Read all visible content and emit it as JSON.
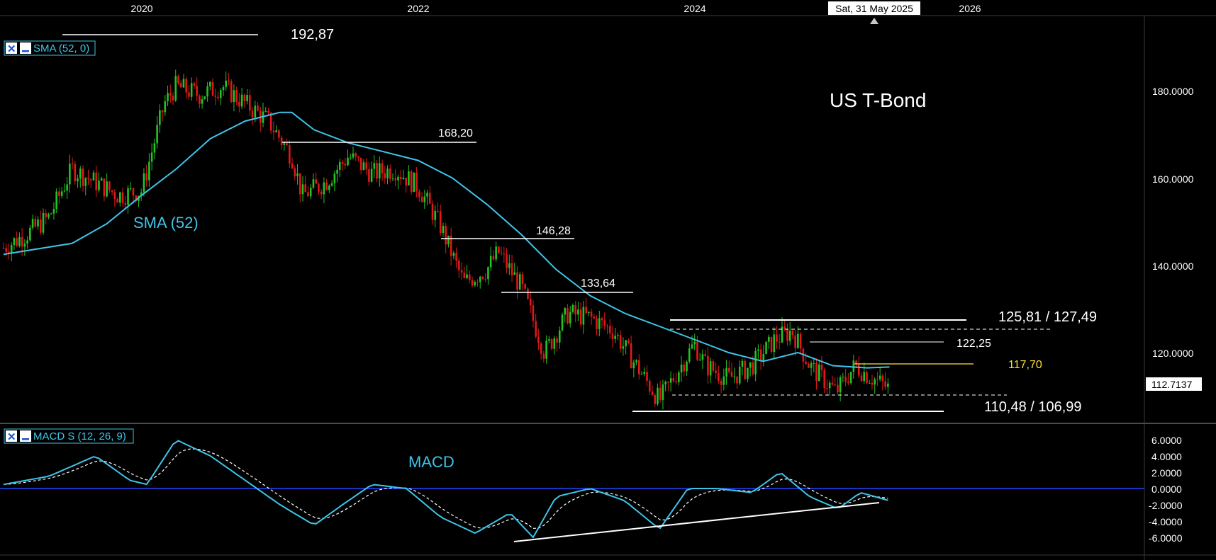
{
  "instrument_title": "US T-Bond",
  "crosshair_date": "Sat, 31 May 2025",
  "last_price_label": "112.7137",
  "price_panel": {
    "indicator_legend": "SMA (52, 0)",
    "sma_label": "SMA (52)",
    "y_ticks": [
      "180.0000",
      "160.0000",
      "140.0000",
      "120.0000"
    ],
    "y_tick_values": [
      180,
      160,
      140,
      120
    ]
  },
  "macd_panel": {
    "indicator_legend": "MACD S (12, 26, 9)",
    "macd_label": "MACD",
    "y_ticks": [
      "6.0000",
      "4.0000",
      "2.0000",
      "0.0000",
      "-2.0000",
      "-4.0000",
      "-6.0000"
    ],
    "y_tick_values": [
      6,
      4,
      2,
      0,
      -2,
      -4,
      -6
    ]
  },
  "x_ticks": [
    "2020",
    "2022",
    "2024",
    "2026"
  ],
  "levels": {
    "high_2020": "192,87",
    "l168": "168,20",
    "l146": "146,28",
    "l133": "133,64",
    "range_top": "125,81 / 127,49",
    "l122": "122,25",
    "l117": "117,70",
    "range_bottom": "110,48 / 106,99"
  },
  "colors": {
    "background": "#000000",
    "up_candle": "#22c422",
    "down_candle": "#e01818",
    "sma": "#3fc4e8",
    "macd": "#3fc4e8",
    "signal": "#ffffff",
    "zero_line": "#2346ff",
    "highlight_level": "#ffe23a",
    "legend_text": "#3fc4e8"
  },
  "chart_data": [
    {
      "type": "candlestick",
      "title": "US T-Bond",
      "ylim": [
        105,
        195
      ],
      "x_range": [
        "2019-01-01",
        "2026-07-01"
      ],
      "x_ticks": [
        "2020",
        "2022",
        "2024",
        "2026"
      ],
      "series": [
        {
          "name": "SMA (52)",
          "type": "line",
          "x": [
            "2019-01-01",
            "2019-07-01",
            "2019-10-01",
            "2020-01-01",
            "2020-04-01",
            "2020-07-01",
            "2020-10-01",
            "2021-01-01",
            "2021-02-01",
            "2021-04-01",
            "2021-07-01",
            "2021-10-01",
            "2022-01-01",
            "2022-04-01",
            "2022-07-01",
            "2022-10-01",
            "2023-01-01",
            "2023-04-01",
            "2023-07-01",
            "2023-10-01",
            "2024-01-01",
            "2024-04-01",
            "2024-07-01",
            "2024-10-01",
            "2025-01-01",
            "2025-04-01",
            "2025-05-31"
          ],
          "values": [
            143.5,
            146,
            150.5,
            157,
            163,
            170,
            174,
            176,
            176,
            172,
            169,
            167,
            165,
            161,
            155,
            148,
            140,
            134,
            130,
            127,
            124,
            121,
            119,
            121,
            118,
            117.5,
            117.7
          ]
        },
        {
          "name": "Close",
          "type": "line",
          "x": [
            "2019-01-01",
            "2019-03-01",
            "2019-05-01",
            "2019-07-01",
            "2019-09-01",
            "2019-11-01",
            "2020-01-01",
            "2020-03-01",
            "2020-04-01",
            "2020-06-01",
            "2020-08-01",
            "2020-10-01",
            "2020-12-01",
            "2021-02-01",
            "2021-03-01",
            "2021-05-01",
            "2021-07-01",
            "2021-09-01",
            "2021-11-01",
            "2022-01-01",
            "2022-03-01",
            "2022-05-01",
            "2022-07-01",
            "2022-08-01",
            "2022-10-01",
            "2022-12-01",
            "2023-02-01",
            "2023-04-01",
            "2023-06-01",
            "2023-08-01",
            "2023-10-01",
            "2024-01-01",
            "2024-02-01",
            "2024-04-01",
            "2024-06-01",
            "2024-08-01",
            "2024-09-15",
            "2024-11-01",
            "2025-01-10",
            "2025-03-01",
            "2025-04-01",
            "2025-05-31"
          ],
          "values": [
            145,
            148,
            152,
            163,
            160,
            157,
            158,
            178,
            182,
            180,
            182,
            178,
            174,
            166,
            157,
            160,
            166,
            162,
            163,
            159,
            150,
            137,
            140,
            144,
            136,
            121,
            130,
            129,
            126,
            118,
            110,
            123,
            118,
            115,
            118,
            124,
            126,
            118,
            112,
            118,
            116,
            112.7
          ]
        }
      ],
      "annotations": [
        {
          "label": "192,87",
          "value": 192.87
        },
        {
          "label": "168,20",
          "value": 168.2
        },
        {
          "label": "146,28",
          "value": 146.28
        },
        {
          "label": "133,64",
          "value": 133.64
        },
        {
          "label": "125,81 / 127,49",
          "values": [
            125.81,
            127.49
          ]
        },
        {
          "label": "122,25",
          "value": 122.25
        },
        {
          "label": "117,70",
          "value": 117.7
        },
        {
          "label": "110,48 / 106,99",
          "values": [
            110.48,
            106.99
          ]
        }
      ]
    },
    {
      "type": "line",
      "title": "MACD S (12, 26, 9)",
      "ylim": [
        -7,
        7
      ],
      "series": [
        {
          "name": "MACD",
          "x": [
            "2019-01-01",
            "2019-05-01",
            "2019-09-01",
            "2019-12-01",
            "2020-01-15",
            "2020-04-01",
            "2020-07-01",
            "2020-10-01",
            "2021-01-01",
            "2021-04-01",
            "2021-06-15",
            "2021-09-01",
            "2021-12-01",
            "2022-03-01",
            "2022-06-01",
            "2022-09-01",
            "2022-11-01",
            "2023-01-01",
            "2023-04-01",
            "2023-07-01",
            "2023-10-01",
            "2023-12-15",
            "2024-03-01",
            "2024-06-01",
            "2024-08-15",
            "2024-11-01",
            "2025-01-15",
            "2025-03-15",
            "2025-05-31"
          ],
          "values": [
            0.5,
            1.5,
            4,
            1,
            0.5,
            6,
            4,
            1,
            -2,
            -4.5,
            -2,
            0.5,
            0,
            -3.5,
            -5.5,
            -3,
            -6,
            -1,
            0,
            -1.5,
            -5,
            0,
            0,
            -0.5,
            2,
            -1,
            -2.5,
            -0.5,
            -1.5
          ]
        }
      ],
      "annotations": [
        {
          "label": "0.0000",
          "value": 0
        }
      ]
    }
  ]
}
